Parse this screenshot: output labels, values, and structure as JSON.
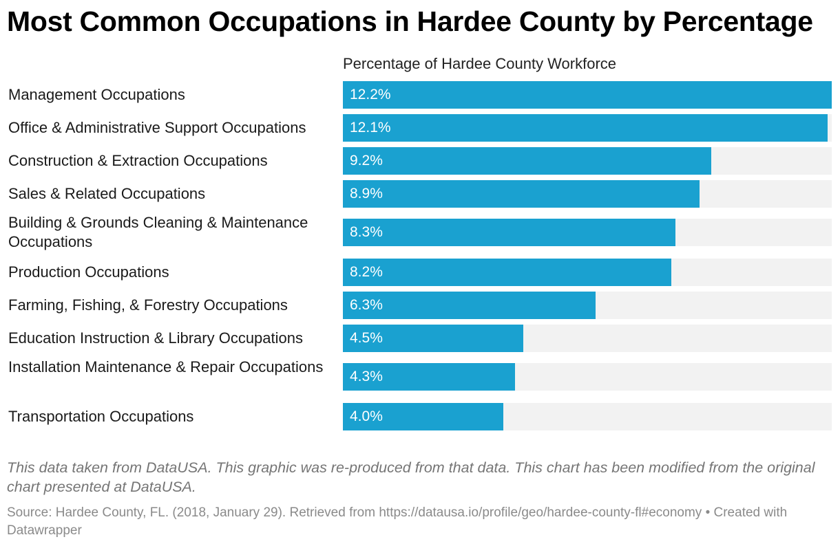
{
  "title": "Most Common Occupations in Hardee County by Percentage",
  "column_header": "Percentage of Hardee County Workforce",
  "footer": {
    "note": "This data taken from DataUSA. This graphic was re-produced from that data. This chart has been modified from the original chart presented at DataUSA.",
    "source": "Source: Hardee County, FL. (2018, January 29). Retrieved from https://datausa.io/profile/geo/hardee-county-fl#economy • Created with Datawrapper"
  },
  "colors": {
    "bar": "#1aa1d0",
    "track": "#f2f2f2"
  },
  "chart_data": {
    "type": "bar",
    "orientation": "horizontal",
    "title": "Most Common Occupations in Hardee County by Percentage",
    "xlabel": "Percentage of Hardee County Workforce",
    "ylabel": "",
    "xlim": [
      0,
      12.2
    ],
    "categories": [
      "Management Occupations",
      "Office & Administrative Support Occupations",
      "Construction & Extraction Occupations",
      "Sales & Related Occupations",
      "Building & Grounds Cleaning & Maintenance Occupations",
      "Production Occupations",
      "Farming, Fishing, & Forestry Occupations",
      "Education Instruction & Library Occupations",
      "Installation Maintenance & Repair Occupations",
      "Transportation Occupations"
    ],
    "values": [
      12.2,
      12.1,
      9.2,
      8.9,
      8.3,
      8.2,
      6.3,
      4.5,
      4.3,
      4.0
    ],
    "value_labels": [
      "12.2%",
      "12.1%",
      "9.2%",
      "8.9%",
      "8.3%",
      "8.2%",
      "6.3%",
      "4.5%",
      "4.3%",
      "4.0%"
    ]
  }
}
